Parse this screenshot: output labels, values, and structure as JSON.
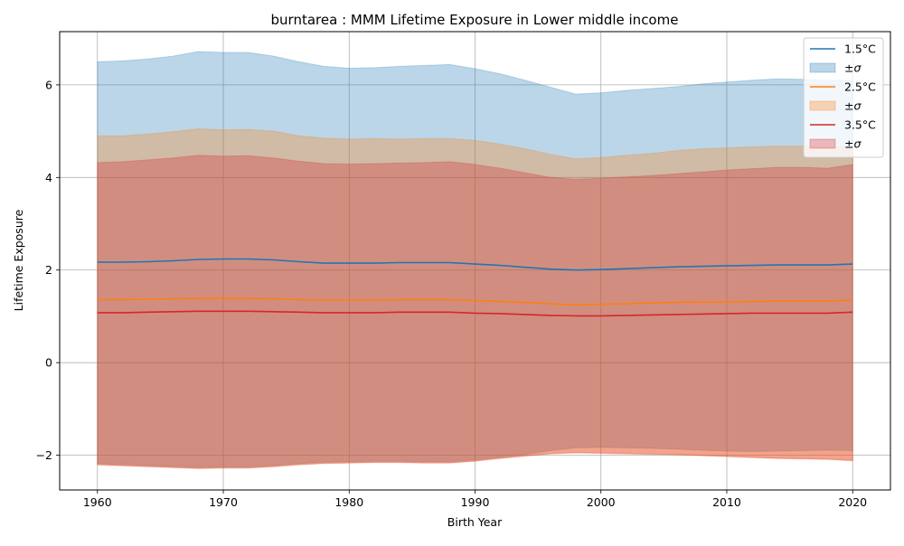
{
  "chart_data": {
    "type": "area",
    "title": "burntarea : MMM Lifetime Exposure in Lower middle income",
    "xlabel": "Birth Year",
    "ylabel": "Lifetime Exposure",
    "xlim": [
      1957,
      2023
    ],
    "ylim": [
      -2.75,
      7.15
    ],
    "xticks": [
      1960,
      1970,
      1980,
      1990,
      2000,
      2010,
      2020
    ],
    "yticks": [
      -2,
      0,
      2,
      4,
      6
    ],
    "grid": true,
    "legend_position": "top-right",
    "x": [
      1960,
      1962,
      1964,
      1966,
      1968,
      1970,
      1972,
      1974,
      1976,
      1978,
      1980,
      1982,
      1984,
      1986,
      1988,
      1990,
      1992,
      1994,
      1996,
      1998,
      2000,
      2002,
      2004,
      2006,
      2008,
      2010,
      2012,
      2014,
      2016,
      2018,
      2020
    ],
    "series": [
      {
        "name": "1.5°C",
        "band_label": "±σ",
        "color": "#1f77b4",
        "fill": "#b9d5eb",
        "mean": [
          2.17,
          2.17,
          2.18,
          2.2,
          2.23,
          2.24,
          2.24,
          2.22,
          2.18,
          2.15,
          2.15,
          2.15,
          2.16,
          2.16,
          2.16,
          2.13,
          2.1,
          2.06,
          2.02,
          2.0,
          2.01,
          2.03,
          2.05,
          2.07,
          2.08,
          2.09,
          2.1,
          2.11,
          2.11,
          2.11,
          2.13
        ],
        "upper": [
          6.5,
          6.52,
          6.56,
          6.62,
          6.72,
          6.7,
          6.7,
          6.62,
          6.5,
          6.4,
          6.36,
          6.37,
          6.4,
          6.42,
          6.44,
          6.35,
          6.24,
          6.1,
          5.95,
          5.8,
          5.83,
          5.88,
          5.92,
          5.96,
          6.02,
          6.06,
          6.1,
          6.13,
          6.12,
          6.1,
          6.1
        ],
        "lower": [
          -2.18,
          -2.2,
          -2.22,
          -2.24,
          -2.26,
          -2.25,
          -2.25,
          -2.22,
          -2.18,
          -2.15,
          -2.14,
          -2.13,
          -2.13,
          -2.14,
          -2.14,
          -2.1,
          -2.04,
          -1.98,
          -1.9,
          -1.84,
          -1.83,
          -1.84,
          -1.85,
          -1.87,
          -1.89,
          -1.91,
          -1.92,
          -1.91,
          -1.9,
          -1.89,
          -1.9
        ]
      },
      {
        "name": "2.5°C",
        "band_label": "±σ",
        "color": "#ff7f0e",
        "fill": "#f9c89c",
        "mean": [
          1.36,
          1.36,
          1.37,
          1.38,
          1.39,
          1.39,
          1.39,
          1.38,
          1.36,
          1.35,
          1.35,
          1.35,
          1.36,
          1.36,
          1.36,
          1.34,
          1.32,
          1.3,
          1.27,
          1.25,
          1.26,
          1.27,
          1.29,
          1.3,
          1.31,
          1.31,
          1.32,
          1.33,
          1.33,
          1.33,
          1.35
        ],
        "upper": [
          4.9,
          4.9,
          4.94,
          4.99,
          5.05,
          5.03,
          5.04,
          5.0,
          4.9,
          4.85,
          4.83,
          4.84,
          4.83,
          4.84,
          4.84,
          4.8,
          4.72,
          4.62,
          4.5,
          4.4,
          4.43,
          4.48,
          4.52,
          4.58,
          4.62,
          4.64,
          4.66,
          4.68,
          4.68,
          4.66,
          4.66
        ],
        "lower": [
          -2.2,
          -2.22,
          -2.24,
          -2.26,
          -2.28,
          -2.27,
          -2.27,
          -2.24,
          -2.2,
          -2.17,
          -2.16,
          -2.15,
          -2.15,
          -2.16,
          -2.16,
          -2.12,
          -2.06,
          -2.01,
          -1.96,
          -1.94,
          -1.95,
          -1.96,
          -1.97,
          -1.98,
          -2.0,
          -2.02,
          -2.04,
          -2.06,
          -2.07,
          -2.08,
          -2.11
        ]
      },
      {
        "name": "3.5°C",
        "band_label": "±σ",
        "color": "#d62728",
        "fill": "#e6b3b3",
        "mean": [
          1.08,
          1.08,
          1.09,
          1.1,
          1.11,
          1.11,
          1.11,
          1.1,
          1.09,
          1.08,
          1.08,
          1.08,
          1.09,
          1.09,
          1.09,
          1.07,
          1.06,
          1.04,
          1.02,
          1.01,
          1.01,
          1.02,
          1.03,
          1.04,
          1.05,
          1.06,
          1.07,
          1.07,
          1.07,
          1.07,
          1.09
        ],
        "upper": [
          4.32,
          4.34,
          4.38,
          4.42,
          4.48,
          4.46,
          4.47,
          4.42,
          4.35,
          4.3,
          4.29,
          4.3,
          4.31,
          4.32,
          4.34,
          4.28,
          4.2,
          4.1,
          4.0,
          3.96,
          3.98,
          4.01,
          4.04,
          4.08,
          4.12,
          4.16,
          4.19,
          4.22,
          4.22,
          4.2,
          4.28
        ],
        "lower": [
          -2.21,
          -2.23,
          -2.25,
          -2.27,
          -2.29,
          -2.28,
          -2.28,
          -2.25,
          -2.21,
          -2.18,
          -2.17,
          -2.16,
          -2.16,
          -2.17,
          -2.17,
          -2.13,
          -2.07,
          -2.02,
          -1.97,
          -1.95,
          -1.96,
          -1.97,
          -1.98,
          -1.99,
          -2.01,
          -2.03,
          -2.05,
          -2.07,
          -2.08,
          -2.09,
          -2.12
        ]
      }
    ]
  }
}
